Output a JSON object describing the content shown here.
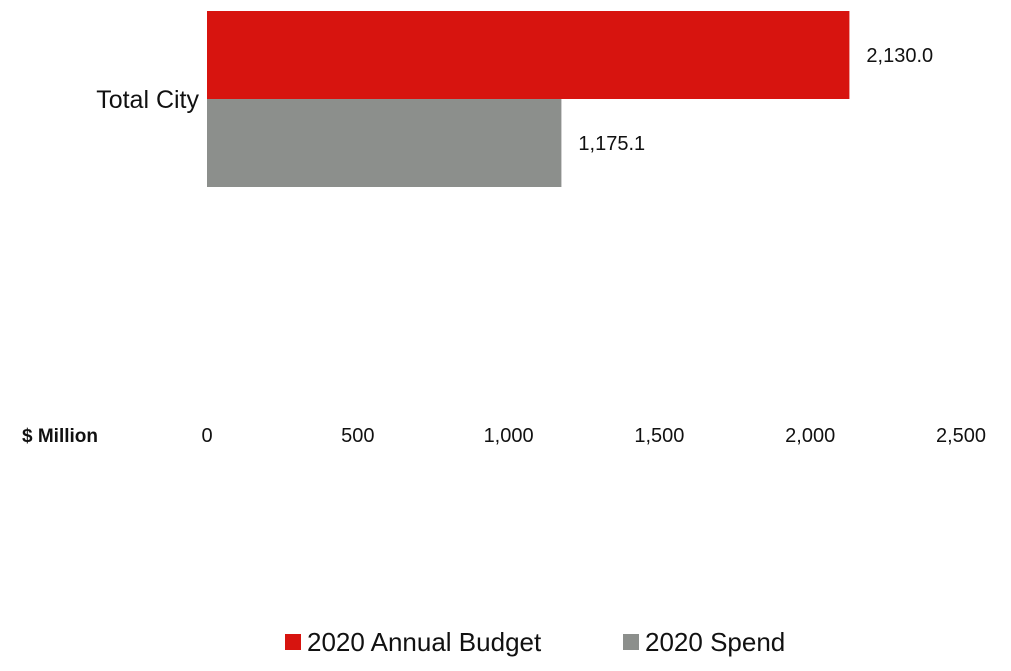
{
  "chart_data": {
    "type": "bar",
    "orientation": "horizontal",
    "categories": [
      "Total City"
    ],
    "series": [
      {
        "name": "2020 Annual Budget",
        "values": [
          2130.0
        ],
        "color": "#d7140f"
      },
      {
        "name": "2020 Spend",
        "values": [
          1175.1
        ],
        "color": "#8c8f8c"
      }
    ],
    "data_labels": [
      [
        "2,130.0"
      ],
      [
        "1,175.1"
      ]
    ],
    "xlabel": "$ Million",
    "xlim": [
      0,
      2500
    ],
    "xticks": [
      0,
      500,
      1000,
      1500,
      2000,
      2500
    ],
    "xtick_labels": [
      "0",
      "500",
      "1,000",
      "1,500",
      "2,000",
      "2,500"
    ],
    "grid": false,
    "legend": {
      "placement": "bottom",
      "entries": [
        "2020 Annual Budget",
        "2020 Spend"
      ]
    }
  }
}
